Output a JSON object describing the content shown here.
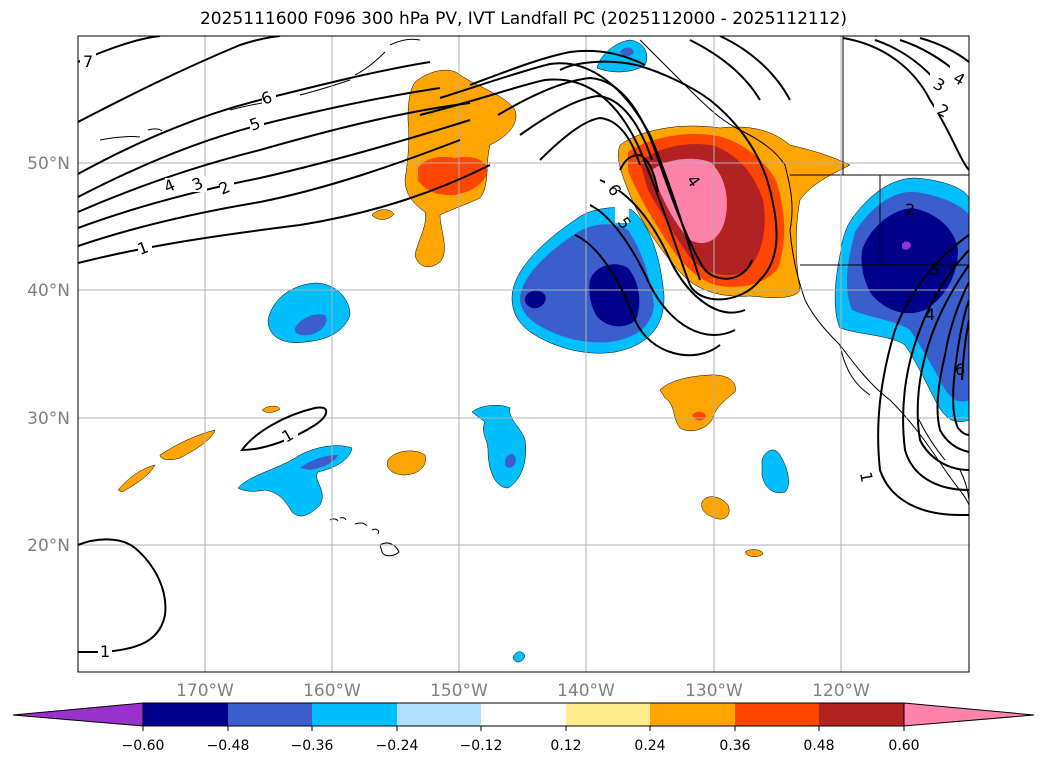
{
  "title": "2025111600 F096 300 hPa PV, IVT Landfall PC (2025112000 - 2025112112)",
  "map": {
    "lon_range": [
      -180,
      -110
    ],
    "lat_range": [
      10,
      60
    ],
    "lat_labels": [
      "20°N",
      "30°N",
      "40°N",
      "50°N"
    ],
    "lon_labels": [
      "170°W",
      "160°W",
      "150°W",
      "140°W",
      "130°W",
      "120°W"
    ],
    "contour_labels": [
      "7",
      "6",
      "5",
      "4",
      "3",
      "2",
      "1",
      "1",
      "1",
      "6",
      "5",
      "4",
      "2",
      "3",
      "4",
      "2",
      "1",
      "6",
      "5",
      "4",
      "5"
    ]
  },
  "colorbar": {
    "ticks": [
      "−0.60",
      "−0.48",
      "−0.36",
      "−0.24",
      "−0.12",
      "0.12",
      "0.24",
      "0.36",
      "0.48",
      "0.60"
    ],
    "colors": [
      "#9932CC",
      "#00008B",
      "#3A5FCD",
      "#00BFFF",
      "#B0E2FF",
      "#FFFFFF",
      "#FFEC8B",
      "#FFA500",
      "#FF4500",
      "#B22222",
      "#FF82AB"
    ]
  }
}
